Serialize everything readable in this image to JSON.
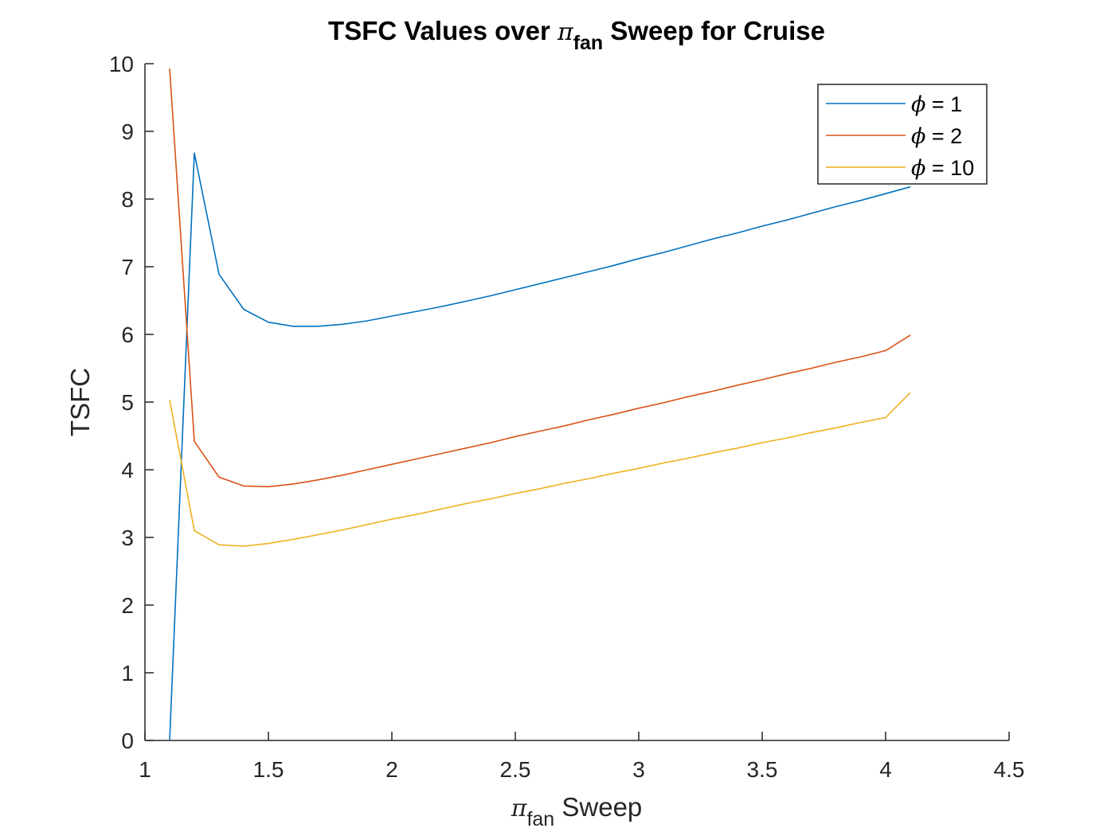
{
  "chart_data": {
    "type": "line",
    "title": {
      "prefix": "TSFC Values over ",
      "symbol": "π",
      "subscript": "fan",
      "suffix": " Sweep for Cruise"
    },
    "xlabel": {
      "symbol": "π",
      "subscript": "fan",
      "suffix": " Sweep"
    },
    "ylabel": "TSFC",
    "xlim": [
      1,
      4.5
    ],
    "ylim": [
      0,
      10
    ],
    "xticks": [
      1,
      1.5,
      2,
      2.5,
      3,
      3.5,
      4,
      4.5
    ],
    "xtick_labels": [
      "1",
      "1.5",
      "2",
      "2.5",
      "3",
      "3.5",
      "4",
      "4.5"
    ],
    "yticks": [
      0,
      1,
      2,
      3,
      4,
      5,
      6,
      7,
      8,
      9,
      10
    ],
    "ytick_labels": [
      "0",
      "1",
      "2",
      "3",
      "4",
      "5",
      "6",
      "7",
      "8",
      "9",
      "10"
    ],
    "grid": false,
    "legend_position": "top-right",
    "x": [
      1.1,
      1.2,
      1.3,
      1.4,
      1.5,
      1.6,
      1.7,
      1.8,
      1.9,
      2.0,
      2.1,
      2.2,
      2.3,
      2.4,
      2.5,
      2.6,
      2.7,
      2.8,
      2.9,
      3.0,
      3.1,
      3.2,
      3.3,
      3.4,
      3.5,
      3.6,
      3.7,
      3.8,
      3.9,
      4.0,
      4.1
    ],
    "series": [
      {
        "name": "ϕ = 1",
        "legend_symbol": "ϕ",
        "legend_suffix": " = 1",
        "color": "#0072bd",
        "values": [
          0.0,
          8.68,
          6.89,
          6.37,
          6.18,
          6.12,
          6.12,
          6.15,
          6.2,
          6.27,
          6.34,
          6.41,
          6.49,
          6.57,
          6.66,
          6.75,
          6.84,
          6.93,
          7.02,
          7.12,
          7.21,
          7.31,
          7.41,
          7.5,
          7.6,
          7.69,
          7.79,
          7.89,
          7.98,
          8.08,
          8.18
        ]
      },
      {
        "name": "ϕ = 2",
        "legend_symbol": "ϕ",
        "legend_suffix": " = 2",
        "color": "#d95319",
        "values": [
          9.93,
          4.42,
          3.89,
          3.76,
          3.75,
          3.79,
          3.85,
          3.92,
          4.0,
          4.08,
          4.16,
          4.24,
          4.32,
          4.4,
          4.49,
          4.57,
          4.65,
          4.74,
          4.82,
          4.91,
          4.99,
          5.08,
          5.16,
          5.25,
          5.33,
          5.42,
          5.5,
          5.59,
          5.67,
          5.76,
          5.99
        ]
      },
      {
        "name": "ϕ = 10",
        "legend_symbol": "ϕ",
        "legend_suffix": " = 10",
        "color": "#edb120",
        "values": [
          5.03,
          3.1,
          2.89,
          2.87,
          2.91,
          2.97,
          3.04,
          3.11,
          3.19,
          3.27,
          3.34,
          3.42,
          3.5,
          3.57,
          3.65,
          3.72,
          3.8,
          3.87,
          3.95,
          4.02,
          4.1,
          4.17,
          4.25,
          4.32,
          4.4,
          4.47,
          4.55,
          4.62,
          4.7,
          4.77,
          5.14
        ]
      }
    ]
  }
}
